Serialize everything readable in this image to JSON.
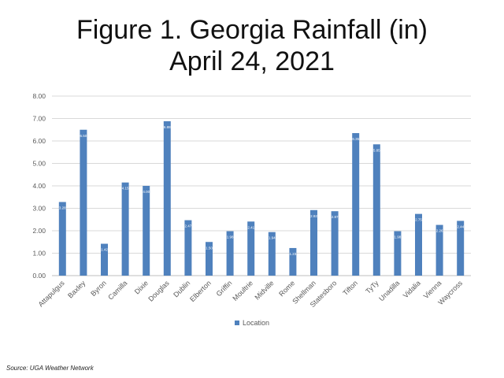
{
  "title_line1": "Figure 1. Georgia Rainfall (in)",
  "title_line2": "April 24, 2021",
  "source": "Source:  UGA Weather Network",
  "colors": {
    "bar": "#4f81bd",
    "grid": "#d9d9d9",
    "axis_text": "#595959"
  },
  "chart_data": {
    "type": "bar",
    "title": "Figure 1. Georgia Rainfall (in) April 24, 2021",
    "categories": [
      "Attapulgus",
      "Baxley",
      "Byron",
      "Camilla",
      "Dixie",
      "Douglas",
      "Dublin",
      "Elberton",
      "Griffin",
      "Moultrie",
      "Midville",
      "Rome",
      "Shellman",
      "Statesboro",
      "Tifton",
      "TyTy",
      "Unadilla",
      "Vidalia",
      "Vienna",
      "Waycross"
    ],
    "series": [
      {
        "name": "Location",
        "values": [
          3.28,
          6.5,
          1.42,
          4.15,
          4.0,
          6.88,
          2.47,
          1.5,
          1.98,
          2.41,
          1.94,
          1.23,
          2.92,
          2.87,
          6.35,
          5.85,
          1.98,
          2.75,
          2.26,
          2.44
        ],
        "labels": [
          "3.28",
          "6.50",
          "1.42",
          "4.15",
          "4.00",
          "6.88",
          "2.47",
          "1.50",
          "1.98",
          "2.41",
          "1.94",
          "1.23",
          "2.92",
          "2.87",
          "6.35",
          "5.85",
          "1.98",
          "2.75",
          "2.26",
          "2.44"
        ]
      }
    ],
    "ylim": [
      0,
      8
    ],
    "yticks": [
      "0.00",
      "1.00",
      "2.00",
      "3.00",
      "4.00",
      "5.00",
      "6.00",
      "7.00",
      "8.00"
    ],
    "grid": true,
    "legend": "bottom-center"
  }
}
